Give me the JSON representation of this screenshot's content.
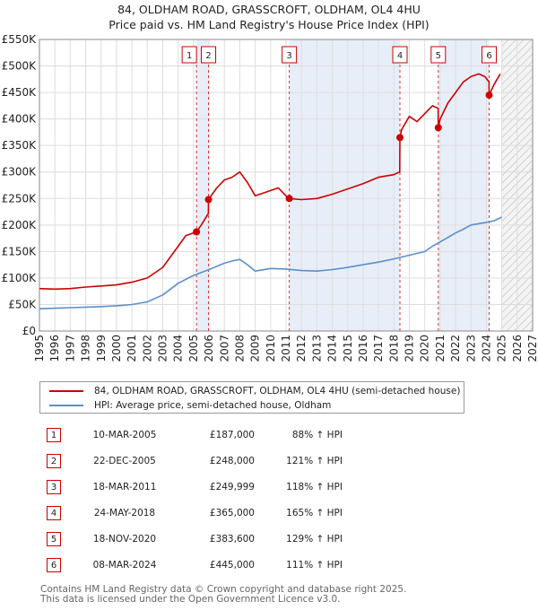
{
  "title": "84, OLDHAM ROAD, GRASSCROFT, OLDHAM, OL4 4HU",
  "subtitle": "Price paid vs. HM Land Registry's House Price Index (HPI)",
  "colors": {
    "property": "#cc0000",
    "hpi": "#5b8fc9",
    "band": "#e8eef8",
    "marker_line": "#dd3333"
  },
  "legend": {
    "property": "84, OLDHAM ROAD, GRASSCROFT, OLDHAM, OL4 4HU (semi-detached house)",
    "hpi": "HPI: Average price, semi-detached house, Oldham"
  },
  "transactions": [
    {
      "num": "1",
      "date": "10-MAR-2005",
      "price": "£187,000",
      "hpi": "88% ↑ HPI"
    },
    {
      "num": "2",
      "date": "22-DEC-2005",
      "price": "£248,000",
      "hpi": "121% ↑ HPI"
    },
    {
      "num": "3",
      "date": "18-MAR-2011",
      "price": "£249,999",
      "hpi": "118% ↑ HPI"
    },
    {
      "num": "4",
      "date": "24-MAY-2018",
      "price": "£365,000",
      "hpi": "165% ↑ HPI"
    },
    {
      "num": "5",
      "date": "18-NOV-2020",
      "price": "£383,600",
      "hpi": "129% ↑ HPI"
    },
    {
      "num": "6",
      "date": "08-MAR-2024",
      "price": "£445,000",
      "hpi": "111% ↑ HPI"
    }
  ],
  "footer": {
    "line1": "Contains HM Land Registry data © Crown copyright and database right 2025.",
    "line2": "This data is licensed under the Open Government Licence v3.0."
  },
  "chart_data": {
    "type": "line",
    "y_ticks": [
      "£0",
      "£50K",
      "£100K",
      "£150K",
      "£200K",
      "£250K",
      "£300K",
      "£350K",
      "£400K",
      "£450K",
      "£500K",
      "£550K"
    ],
    "x_ticks": [
      "1995",
      "1996",
      "1997",
      "1998",
      "1999",
      "2000",
      "2001",
      "2002",
      "2003",
      "2004",
      "2005",
      "2006",
      "2007",
      "2008",
      "2009",
      "2010",
      "2011",
      "2012",
      "2013",
      "2014",
      "2015",
      "2016",
      "2017",
      "2018",
      "2019",
      "2020",
      "2021",
      "2022",
      "2023",
      "2024",
      "2025",
      "2026",
      "2027"
    ],
    "xlim": [
      1995,
      2027
    ],
    "ylim": [
      0,
      550000
    ],
    "grid": true,
    "legend_position": "below",
    "data_end": 2025.0,
    "shaded_ranges": [
      [
        2005.19,
        2005.97
      ],
      [
        2011.21,
        2018.39
      ],
      [
        2020.88,
        2024.18
      ]
    ],
    "sales": [
      {
        "label": "1",
        "x": 2005.19,
        "y": 187000
      },
      {
        "label": "2",
        "x": 2005.97,
        "y": 248000
      },
      {
        "label": "3",
        "x": 2011.21,
        "y": 249999
      },
      {
        "label": "4",
        "x": 2018.39,
        "y": 365000
      },
      {
        "label": "5",
        "x": 2020.88,
        "y": 383600
      },
      {
        "label": "6",
        "x": 2024.18,
        "y": 445000
      }
    ],
    "series": [
      {
        "name": "84, OLDHAM ROAD, GRASSCROFT, OLDHAM, OL4 4HU (semi-detached house)",
        "x": [
          1995.0,
          1996.0,
          1997.0,
          1998.0,
          1999.0,
          2000.0,
          2001.0,
          2002.0,
          2003.0,
          2004.0,
          2004.5,
          2005.19,
          2005.5,
          2005.96,
          2005.97,
          2006.5,
          2007.0,
          2007.5,
          2008.0,
          2008.5,
          2009.0,
          2009.5,
          2010.0,
          2010.5,
          2011.0,
          2011.21,
          2012.0,
          2013.0,
          2014.0,
          2015.0,
          2016.0,
          2017.0,
          2018.0,
          2018.2,
          2018.38,
          2018.39,
          2018.5,
          2019.0,
          2019.5,
          2020.0,
          2020.5,
          2020.87,
          2020.88,
          2021.0,
          2021.5,
          2022.0,
          2022.5,
          2023.0,
          2023.5,
          2023.9,
          2024.17,
          2024.18,
          2024.5,
          2024.9
        ],
        "y": [
          80000,
          79000,
          80000,
          83000,
          85000,
          87000,
          92000,
          100000,
          120000,
          160000,
          180000,
          187000,
          200000,
          222000,
          248000,
          270000,
          285000,
          290000,
          300000,
          280000,
          255000,
          260000,
          265000,
          270000,
          255000,
          249999,
          248000,
          250000,
          258000,
          268000,
          278000,
          290000,
          295000,
          298000,
          300000,
          365000,
          380000,
          405000,
          395000,
          410000,
          425000,
          420000,
          383600,
          400000,
          430000,
          450000,
          470000,
          480000,
          485000,
          480000,
          470000,
          445000,
          465000,
          485000
        ]
      },
      {
        "name": "HPI: Average price, semi-detached house, Oldham",
        "x": [
          1995.0,
          1996.0,
          1997.0,
          1998.0,
          1999.0,
          2000.0,
          2001.0,
          2002.0,
          2003.0,
          2004.0,
          2005.0,
          2006.0,
          2007.0,
          2007.5,
          2008.0,
          2008.5,
          2009.0,
          2010.0,
          2011.0,
          2012.0,
          2013.0,
          2014.0,
          2015.0,
          2016.0,
          2017.0,
          2018.0,
          2019.0,
          2020.0,
          2020.5,
          2021.0,
          2022.0,
          2022.5,
          2023.0,
          2024.0,
          2024.5,
          2025.0
        ],
        "y": [
          42000,
          43000,
          44000,
          45000,
          46000,
          47500,
          50000,
          55000,
          68000,
          90000,
          105000,
          116000,
          128000,
          132000,
          135000,
          125000,
          113000,
          118000,
          117000,
          114000,
          113000,
          116000,
          120000,
          125000,
          130000,
          136000,
          143000,
          150000,
          160000,
          168000,
          185000,
          192000,
          200000,
          205000,
          208000,
          215000
        ]
      }
    ]
  }
}
